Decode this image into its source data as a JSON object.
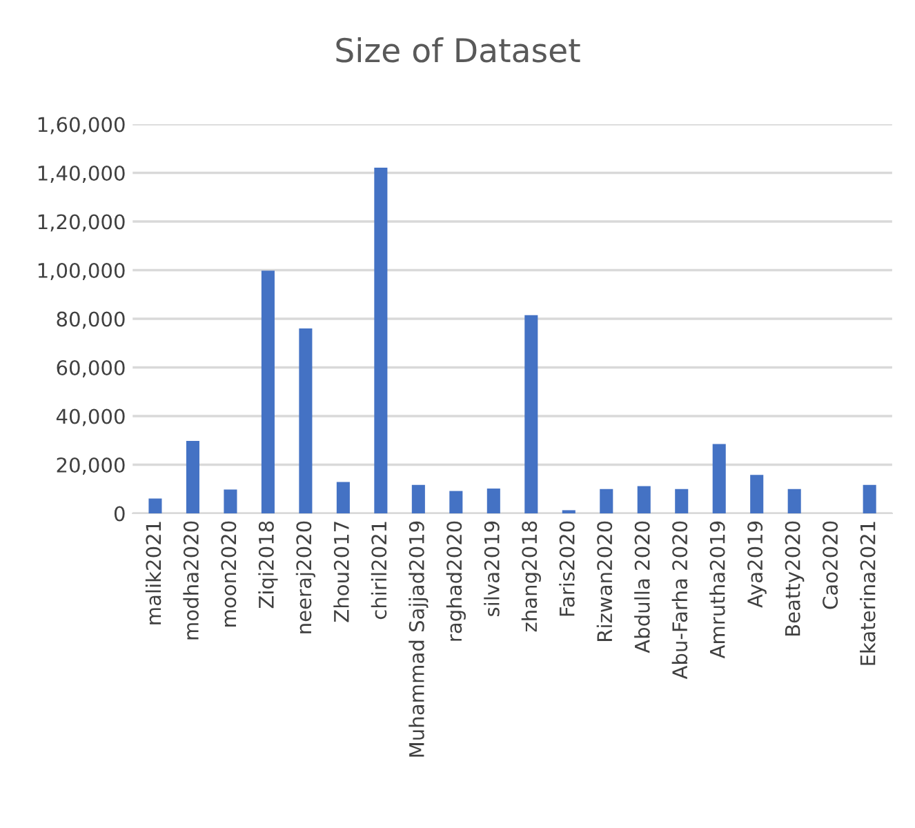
{
  "chart_data": {
    "type": "bar",
    "title": "Size of Dataset",
    "categories": [
      "malik2021",
      "modha2020",
      "moon2020",
      "Ziqi2018",
      "neeraj2020",
      "Zhou2017",
      "chiril2021",
      "Muhammad Sajjad2019",
      "raghad2020",
      "silva2019",
      "zhang2018",
      "Faris2020",
      "Rizwan2020",
      "Abdulla 2020",
      "Abu-Farha 2020",
      "Amrutha2019",
      "Aya2019",
      "Beatty2020",
      "Cao2020",
      "Ekaterina2021"
    ],
    "values": [
      6100,
      29800,
      9800,
      99800,
      76000,
      12900,
      142100,
      11700,
      9200,
      10200,
      81500,
      1300,
      10000,
      11200,
      10000,
      28500,
      15800,
      10000,
      0,
      11700
    ],
    "color": "#4472c4",
    "ylim": [
      0,
      160000
    ],
    "yticks": [
      0,
      {
        "value": 20000,
        "label": "20,000"
      },
      {
        "value": 40000,
        "label": "40,000"
      },
      {
        "value": 60000,
        "label": "60,000"
      },
      {
        "value": 80000,
        "label": "80,000"
      },
      {
        "value": 100000,
        "label": "1,00,000"
      },
      {
        "value": 120000,
        "label": "1,20,000"
      },
      {
        "value": 140000,
        "label": "1,40,000"
      },
      {
        "value": 160000,
        "label": "1,60,000"
      }
    ],
    "grid": "y",
    "legend": false
  }
}
